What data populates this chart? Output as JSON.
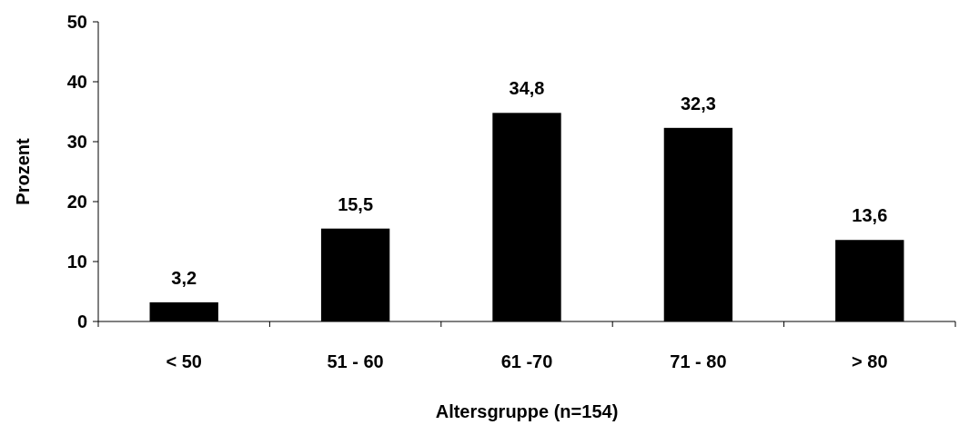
{
  "chart_data": {
    "type": "bar",
    "xlabel": "Altersgruppe (n=154)",
    "ylabel": "Prozent",
    "categories": [
      "< 50",
      "51 - 60",
      "61 -70",
      "71 - 80",
      "> 80"
    ],
    "values": [
      3.2,
      15.5,
      34.8,
      32.3,
      13.6
    ],
    "value_labels": [
      "3,2",
      "15,5",
      "34,8",
      "32,3",
      "13,6"
    ],
    "color": "#000000",
    "ylim": [
      0,
      50
    ],
    "yticks": [
      0,
      10,
      20,
      30,
      40,
      50
    ]
  }
}
